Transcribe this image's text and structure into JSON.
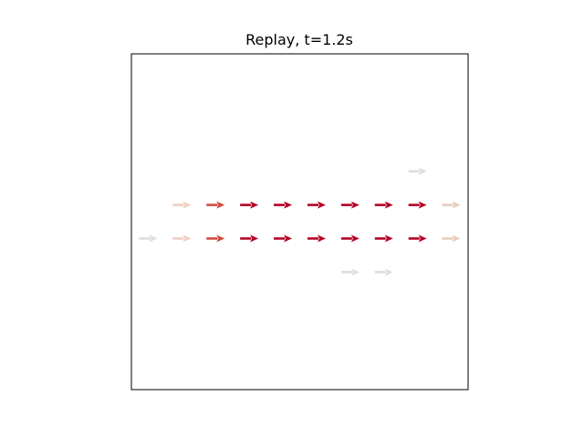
{
  "chart_data": {
    "type": "quiver",
    "title": "Replay, t=1.2s",
    "xlabel": "",
    "ylabel": "",
    "xlim": [
      0,
      10
    ],
    "ylim": [
      0,
      10
    ],
    "axes_ticks_visible": false,
    "grid": false,
    "colormap": "coolwarm",
    "arrows": [
      {
        "x": 0.5,
        "y": 4.5,
        "u": 1,
        "v": 0,
        "color": "#dddddd"
      },
      {
        "x": 1.5,
        "y": 4.5,
        "u": 1,
        "v": 0,
        "color": "#efcfbf"
      },
      {
        "x": 2.5,
        "y": 4.5,
        "u": 1,
        "v": 0,
        "color": "#d24b40"
      },
      {
        "x": 3.5,
        "y": 4.5,
        "u": 1,
        "v": 0,
        "color": "#b40426"
      },
      {
        "x": 4.5,
        "y": 4.5,
        "u": 1,
        "v": 0,
        "color": "#b40426"
      },
      {
        "x": 5.5,
        "y": 4.5,
        "u": 1,
        "v": 0,
        "color": "#b40426"
      },
      {
        "x": 6.5,
        "y": 4.5,
        "u": 1,
        "v": 0,
        "color": "#b40426"
      },
      {
        "x": 7.5,
        "y": 4.5,
        "u": 1,
        "v": 0,
        "color": "#b40426"
      },
      {
        "x": 8.5,
        "y": 4.5,
        "u": 1,
        "v": 0,
        "color": "#b40426"
      },
      {
        "x": 9.5,
        "y": 4.5,
        "u": 1,
        "v": 0,
        "color": "#e8cdbd"
      },
      {
        "x": 1.5,
        "y": 5.5,
        "u": 1,
        "v": 0,
        "color": "#efcfbf"
      },
      {
        "x": 2.5,
        "y": 5.5,
        "u": 1,
        "v": 0,
        "color": "#d24b40"
      },
      {
        "x": 3.5,
        "y": 5.5,
        "u": 1,
        "v": 0,
        "color": "#b40426"
      },
      {
        "x": 4.5,
        "y": 5.5,
        "u": 1,
        "v": 0,
        "color": "#b40426"
      },
      {
        "x": 5.5,
        "y": 5.5,
        "u": 1,
        "v": 0,
        "color": "#b40426"
      },
      {
        "x": 6.5,
        "y": 5.5,
        "u": 1,
        "v": 0,
        "color": "#b40426"
      },
      {
        "x": 7.5,
        "y": 5.5,
        "u": 1,
        "v": 0,
        "color": "#b40426"
      },
      {
        "x": 8.5,
        "y": 5.5,
        "u": 1,
        "v": 0,
        "color": "#b40426"
      },
      {
        "x": 9.5,
        "y": 5.5,
        "u": 1,
        "v": 0,
        "color": "#e8cdbd"
      },
      {
        "x": 8.5,
        "y": 6.5,
        "u": 1,
        "v": 0,
        "color": "#dddddd"
      },
      {
        "x": 6.5,
        "y": 3.5,
        "u": 1,
        "v": 0,
        "color": "#dddddd"
      },
      {
        "x": 7.5,
        "y": 3.5,
        "u": 1,
        "v": 0,
        "color": "#dddddd"
      }
    ]
  }
}
